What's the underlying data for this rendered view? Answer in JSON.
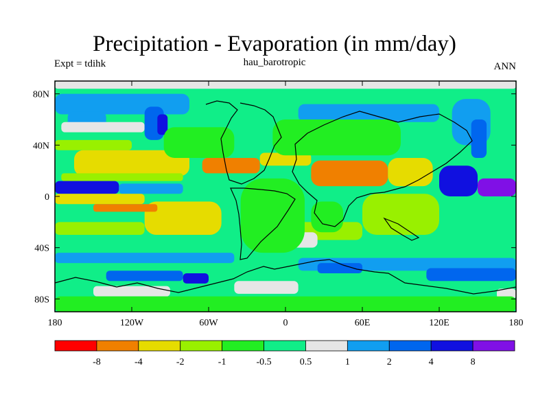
{
  "header": {
    "title": "Precipitation - Evaporation (in mm/day)",
    "expt": "Expt = tdihk",
    "run": "hau_barotropic",
    "season": "ANN"
  },
  "chart_data": {
    "type": "heatmap",
    "title": "Precipitation - Evaporation (in mm/day)",
    "xlabel": "",
    "ylabel": "",
    "xlim": [
      -180,
      180
    ],
    "ylim": [
      -90,
      90
    ],
    "x_ticks": [
      {
        "value": -180,
        "label": "180"
      },
      {
        "value": -120,
        "label": "120W"
      },
      {
        "value": -60,
        "label": "60W"
      },
      {
        "value": 0,
        "label": "0"
      },
      {
        "value": 60,
        "label": "60E"
      },
      {
        "value": 120,
        "label": "120E"
      },
      {
        "value": 180,
        "label": "180"
      }
    ],
    "y_ticks": [
      {
        "value": 80,
        "label": "80N"
      },
      {
        "value": 40,
        "label": "40N"
      },
      {
        "value": 0,
        "label": "0"
      },
      {
        "value": -40,
        "label": "40S"
      },
      {
        "value": -80,
        "label": "80S"
      }
    ],
    "colorbar": {
      "colors": [
        "#ff0000",
        "#f08000",
        "#e6dc00",
        "#99f000",
        "#22ee22",
        "#10ee88",
        "#e6e6e6",
        "#119ef0",
        "#0066ee",
        "#1010e0",
        "#8010e6"
      ],
      "labels": [
        "-8",
        "-4",
        "-2",
        "-1",
        "-0.5",
        "0.5",
        "1",
        "2",
        "4",
        "8"
      ]
    },
    "regions": [
      {
        "color": "#10ee88",
        "y1": 90,
        "y2": -90,
        "x1": -180,
        "x2": 180
      },
      {
        "color": "#e6e6e6",
        "y1": 90,
        "y2": 84,
        "x1": -180,
        "x2": 180
      },
      {
        "color": "#119ef0",
        "y1": 80,
        "y2": 64,
        "x1": -180,
        "x2": -75
      },
      {
        "color": "#119ef0",
        "y1": 66,
        "y2": 54,
        "x1": -170,
        "x2": -140
      },
      {
        "color": "#e6e6e6",
        "y1": 58,
        "y2": 50,
        "x1": -175,
        "x2": -110
      },
      {
        "color": "#0066ee",
        "y1": 70,
        "y2": 44,
        "x1": -110,
        "x2": -95
      },
      {
        "color": "#1010e0",
        "y1": 64,
        "y2": 48,
        "x1": -100,
        "x2": -92
      },
      {
        "color": "#119ef0",
        "y1": 72,
        "y2": 58,
        "x1": 10,
        "x2": 120
      },
      {
        "color": "#0066ee",
        "y1": 60,
        "y2": 50,
        "x1": 20,
        "x2": 40
      },
      {
        "color": "#119ef0",
        "y1": 76,
        "y2": 40,
        "x1": 130,
        "x2": 160
      },
      {
        "color": "#0066ee",
        "y1": 60,
        "y2": 30,
        "x1": 145,
        "x2": 157
      },
      {
        "color": "#99f000",
        "y1": 44,
        "y2": 36,
        "x1": -180,
        "x2": -120
      },
      {
        "color": "#e6dc00",
        "y1": 36,
        "y2": 16,
        "x1": -165,
        "x2": -75
      },
      {
        "color": "#99f000",
        "y1": 18,
        "y2": 12,
        "x1": -175,
        "x2": -80
      },
      {
        "color": "#f08000",
        "y1": 30,
        "y2": 18,
        "x1": -65,
        "x2": -20
      },
      {
        "color": "#e6dc00",
        "y1": 34,
        "y2": 24,
        "x1": -20,
        "x2": 20
      },
      {
        "color": "#f08000",
        "y1": 28,
        "y2": 8,
        "x1": 20,
        "x2": 80
      },
      {
        "color": "#e6dc00",
        "y1": 30,
        "y2": 8,
        "x1": 80,
        "x2": 115
      },
      {
        "color": "#1010e0",
        "y1": 12,
        "y2": 2,
        "x1": -180,
        "x2": -130
      },
      {
        "color": "#119ef0",
        "y1": 10,
        "y2": 2,
        "x1": -130,
        "x2": -80
      },
      {
        "color": "#1010e0",
        "y1": 24,
        "y2": 0,
        "x1": 120,
        "x2": 150
      },
      {
        "color": "#8010e6",
        "y1": 14,
        "y2": 0,
        "x1": 150,
        "x2": 180
      },
      {
        "color": "#0066ee",
        "y1": 8,
        "y2": -6,
        "x1": -30,
        "x2": -15
      },
      {
        "color": "#e6dc00",
        "y1": 2,
        "y2": -6,
        "x1": -180,
        "x2": -110
      },
      {
        "color": "#e6dc00",
        "y1": -4,
        "y2": -30,
        "x1": -110,
        "x2": -50
      },
      {
        "color": "#f08000",
        "y1": -6,
        "y2": -12,
        "x1": -150,
        "x2": -100
      },
      {
        "color": "#99f000",
        "y1": -20,
        "y2": -30,
        "x1": -180,
        "x2": -110
      },
      {
        "color": "#99f000",
        "y1": 2,
        "y2": -30,
        "x1": 60,
        "x2": 120
      },
      {
        "color": "#99f000",
        "y1": -20,
        "y2": -34,
        "x1": 10,
        "x2": 60
      },
      {
        "color": "#e6e6e6",
        "y1": -28,
        "y2": -40,
        "x1": -15,
        "x2": 25
      },
      {
        "color": "#119ef0",
        "y1": -44,
        "y2": -52,
        "x1": -180,
        "x2": -40
      },
      {
        "color": "#119ef0",
        "y1": -48,
        "y2": -58,
        "x1": 10,
        "x2": 180
      },
      {
        "color": "#0066ee",
        "y1": -52,
        "y2": -60,
        "x1": 25,
        "x2": 60
      },
      {
        "color": "#0066ee",
        "y1": -58,
        "y2": -66,
        "x1": -140,
        "x2": -80
      },
      {
        "color": "#1010e0",
        "y1": -60,
        "y2": -68,
        "x1": -80,
        "x2": -60
      },
      {
        "color": "#0066ee",
        "y1": -56,
        "y2": -66,
        "x1": 110,
        "x2": 180
      },
      {
        "color": "#e6e6e6",
        "y1": -70,
        "y2": -78,
        "x1": -150,
        "x2": -90
      },
      {
        "color": "#e6e6e6",
        "y1": -66,
        "y2": -76,
        "x1": -40,
        "x2": 10
      },
      {
        "color": "#e6e6e6",
        "y1": -72,
        "y2": -80,
        "x1": 165,
        "x2": 180
      },
      {
        "color": "#22ee22",
        "y1": 54,
        "y2": 30,
        "x1": -95,
        "x2": -40
      },
      {
        "color": "#22ee22",
        "y1": 14,
        "y2": -44,
        "x1": -35,
        "x2": 15
      },
      {
        "color": "#22ee22",
        "y1": 60,
        "y2": 32,
        "x1": -10,
        "x2": 90
      },
      {
        "color": "#22ee22",
        "y1": -4,
        "y2": -28,
        "x1": 20,
        "x2": 45
      },
      {
        "color": "#22ee22",
        "y1": -78,
        "y2": -90,
        "x1": -180,
        "x2": 180
      }
    ]
  }
}
